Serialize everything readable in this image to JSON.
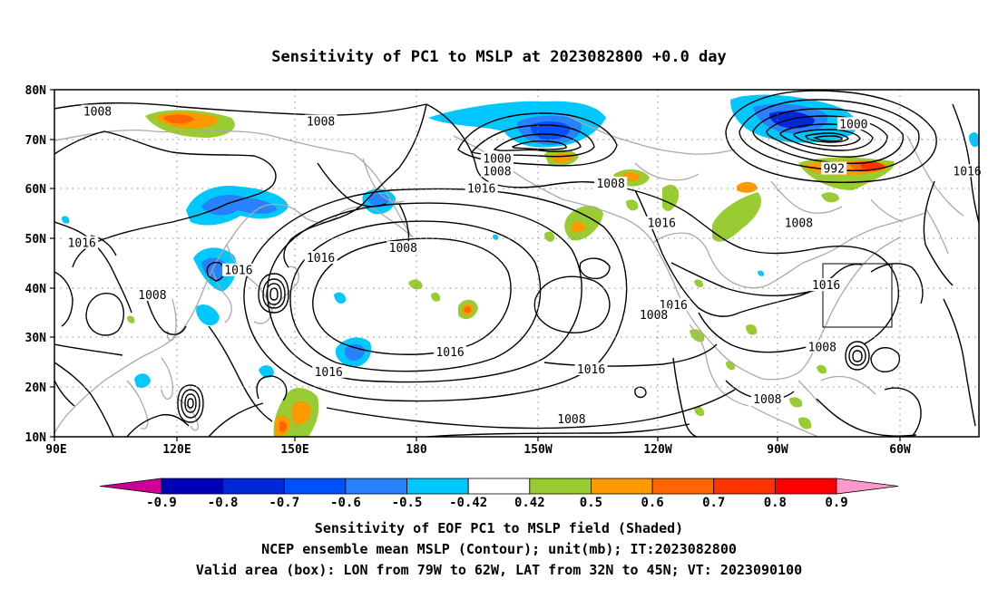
{
  "title": "Sensitivity of PC1 to MSLP at 2023082800 +0.0 day",
  "map": {
    "lat_ticks": [
      "80N",
      "70N",
      "60N",
      "50N",
      "40N",
      "30N",
      "20N",
      "10N"
    ],
    "lon_ticks": [
      "90E",
      "120E",
      "150E",
      "180",
      "150W",
      "120W",
      "90W",
      "60W"
    ],
    "lon_range_deg_east": [
      90,
      326
    ],
    "lat_range": [
      10,
      80
    ],
    "grid": "dotted",
    "contour_labels": [
      {
        "text": "1008",
        "lon": 101,
        "lat": 75.5
      },
      {
        "text": "1008",
        "lon": 158,
        "lat": 73.5
      },
      {
        "text": "1000",
        "lon": 203,
        "lat": 66
      },
      {
        "text": "1008",
        "lon": 203,
        "lat": 63.5
      },
      {
        "text": "1016",
        "lon": 199,
        "lat": 60
      },
      {
        "text": "1008",
        "lon": 232,
        "lat": 61
      },
      {
        "text": "1016",
        "lon": 245,
        "lat": 53
      },
      {
        "text": "1008",
        "lon": 280,
        "lat": 53
      },
      {
        "text": "1000",
        "lon": 294,
        "lat": 73
      },
      {
        "text": "992",
        "lon": 289,
        "lat": 64
      },
      {
        "text": "1016",
        "lon": 323,
        "lat": 63.5
      },
      {
        "text": "1016",
        "lon": 97,
        "lat": 49
      },
      {
        "text": "1016",
        "lon": 137,
        "lat": 43.5
      },
      {
        "text": "1008",
        "lon": 115,
        "lat": 38.5
      },
      {
        "text": "1008",
        "lon": 179,
        "lat": 48
      },
      {
        "text": "1016",
        "lon": 158,
        "lat": 46
      },
      {
        "text": "1016",
        "lon": 248,
        "lat": 36.5
      },
      {
        "text": "1008",
        "lon": 243,
        "lat": 34.5
      },
      {
        "text": "1016",
        "lon": 287,
        "lat": 40.5
      },
      {
        "text": "1016",
        "lon": 191,
        "lat": 27
      },
      {
        "text": "1016",
        "lon": 160,
        "lat": 23
      },
      {
        "text": "1016",
        "lon": 227,
        "lat": 23.5
      },
      {
        "text": "1008",
        "lon": 286,
        "lat": 28
      },
      {
        "text": "1008",
        "lon": 272,
        "lat": 17.5
      },
      {
        "text": "1008",
        "lon": 222,
        "lat": 13.5
      }
    ],
    "valid_box": {
      "lon_west": 79,
      "lon_east": 62,
      "lat_south": 32,
      "lat_north": 45
    }
  },
  "colorbar": {
    "labels": [
      "-0.9",
      "-0.8",
      "-0.7",
      "-0.6",
      "-0.5",
      "-0.42",
      "0.42",
      "0.5",
      "0.6",
      "0.7",
      "0.8",
      "0.9"
    ],
    "colors": [
      "#cc0099",
      "#0000b8",
      "#0028d8",
      "#0050ff",
      "#2882ff",
      "#00c8ff",
      "#ffffff",
      "#99cc33",
      "#ff9900",
      "#ff6600",
      "#ff3300",
      "#ff0000",
      "#ff99cc"
    ]
  },
  "footer": {
    "line1": "Sensitivity of EOF PC1 to MSLP field (Shaded)",
    "line2": "NCEP ensemble mean MSLP (Contour); unit(mb); IT:2023082800",
    "line3": "Valid area (box): LON from 79W to 62W, LAT from 32N to 45N; VT: 2023090100"
  }
}
